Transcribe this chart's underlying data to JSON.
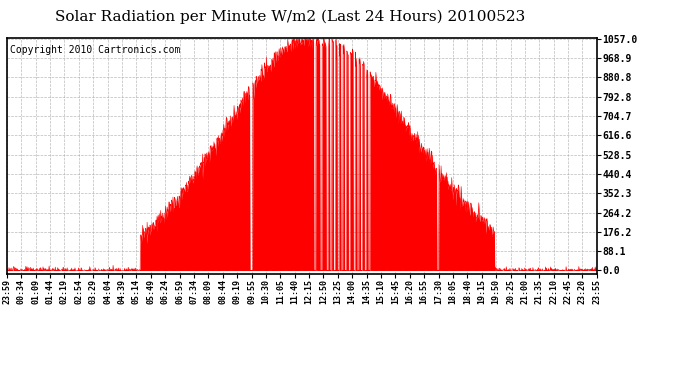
{
  "title": "Solar Radiation per Minute W/m2 (Last 24 Hours) 20100523",
  "copyright": "Copyright 2010 Cartronics.com",
  "y_max": 1057.0,
  "y_ticks": [
    0.0,
    88.1,
    176.2,
    264.2,
    352.3,
    440.4,
    528.5,
    616.6,
    704.7,
    792.8,
    880.8,
    968.9,
    1057.0
  ],
  "x_labels": [
    "23:59",
    "00:34",
    "01:09",
    "01:44",
    "02:19",
    "02:54",
    "03:29",
    "04:04",
    "04:39",
    "05:14",
    "05:49",
    "06:24",
    "06:59",
    "07:34",
    "08:09",
    "08:44",
    "09:19",
    "09:55",
    "10:30",
    "11:05",
    "11:40",
    "12:15",
    "12:50",
    "13:25",
    "14:00",
    "14:35",
    "15:10",
    "15:45",
    "16:20",
    "16:55",
    "17:30",
    "18:05",
    "18:40",
    "19:15",
    "19:50",
    "20:25",
    "21:00",
    "21:35",
    "22:10",
    "22:45",
    "23:20",
    "23:55"
  ],
  "fill_color": "#FF0000",
  "line_color": "#FF0000",
  "bg_color": "#FFFFFF",
  "grid_color": "#AAAAAA",
  "dashed_zero_color": "#FF0000",
  "title_fontsize": 11,
  "copyright_fontsize": 7
}
